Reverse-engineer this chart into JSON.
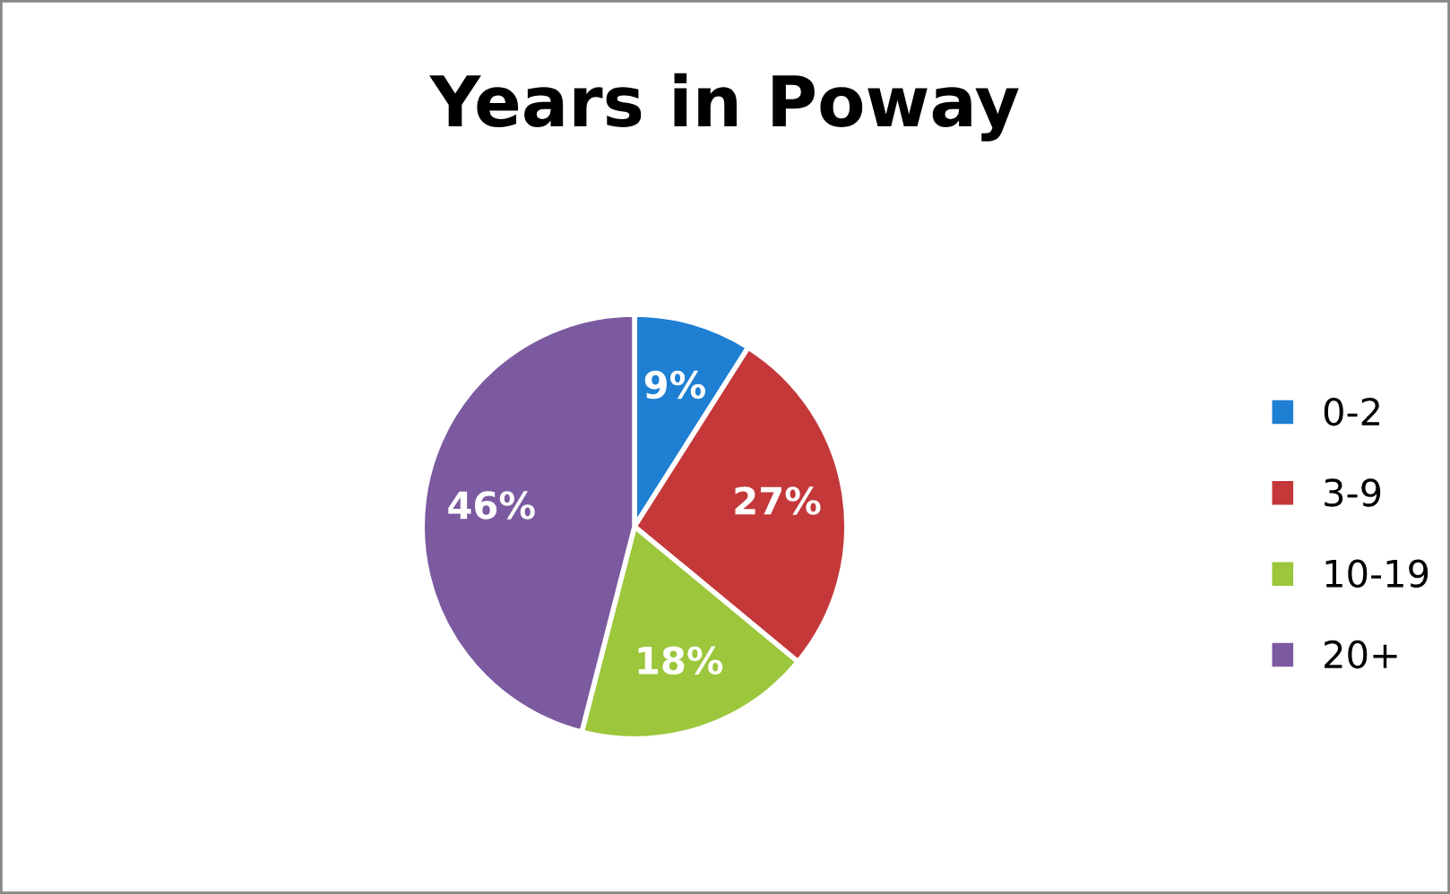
{
  "chart_data": {
    "type": "pie",
    "title": "Years in Poway",
    "categories": [
      "0-2",
      "3-9",
      "10-19",
      "20+"
    ],
    "values": [
      9,
      27,
      18,
      46
    ],
    "colors": [
      "#1f7fd3",
      "#c4383a",
      "#9cc63b",
      "#7b5aa0"
    ],
    "value_labels": [
      "9%",
      "27%",
      "18%",
      "46%"
    ],
    "legend": "right"
  }
}
